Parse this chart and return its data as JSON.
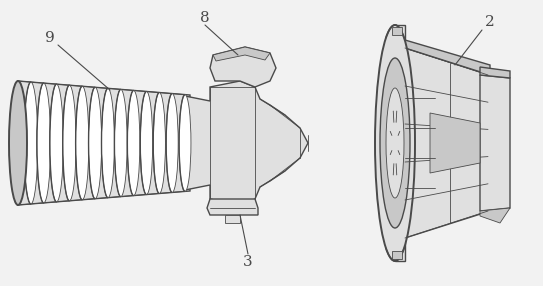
{
  "bg_color": "#f2f2f2",
  "line_color": "#4a4a4a",
  "fill_light": "#e0e0e0",
  "fill_mid": "#c8c8c8",
  "fill_dark": "#b0b0b0",
  "white": "#ffffff",
  "fig_width": 5.43,
  "fig_height": 2.86,
  "dpi": 100,
  "label_fs": 11,
  "lw_main": 1.0,
  "lw_thin": 0.6,
  "lw_thick": 1.4
}
